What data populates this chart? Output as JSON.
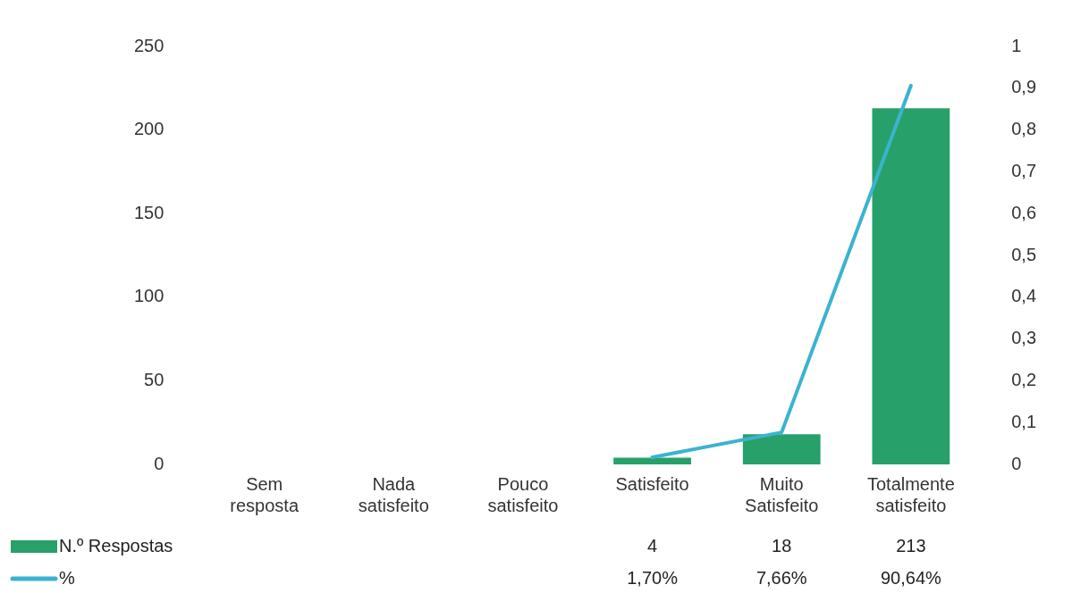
{
  "chart_data": {
    "type": "bar",
    "categories": [
      "Sem resposta",
      "Nada satisfeito",
      "Pouco satisfeito",
      "Satisfeito",
      "Muito Satisfeito",
      "Totalmente satisfeito"
    ],
    "series": [
      {
        "name": "N.º Respostas",
        "color": "#27a06a",
        "values": [
          null,
          null,
          null,
          4,
          18,
          213
        ],
        "value_labels": [
          null,
          null,
          null,
          "4",
          "18",
          "213"
        ]
      },
      {
        "name": "%",
        "type": "line",
        "axis": "y2",
        "color": "#3bb3d0",
        "values": [
          null,
          null,
          null,
          0.017,
          0.0766,
          0.9064
        ],
        "value_labels": [
          null,
          null,
          null,
          "1,70%",
          "7,66%",
          "90,64%"
        ]
      }
    ],
    "legend": "bottom left",
    "ylim": [
      0,
      250
    ],
    "yticks": [
      0,
      50,
      100,
      150,
      200,
      250
    ],
    "y2lim": [
      0,
      1
    ],
    "y2ticks": [
      {
        "value": 0,
        "label": "0"
      },
      {
        "value": 0.1,
        "label": "0,1"
      },
      {
        "value": 0.2,
        "label": "0,2"
      },
      {
        "value": 0.3,
        "label": "0,3"
      },
      {
        "value": 0.4,
        "label": "0,4"
      },
      {
        "value": 0.5,
        "label": "0,5"
      },
      {
        "value": 0.6,
        "label": "0,6"
      },
      {
        "value": 0.7,
        "label": "0,7"
      },
      {
        "value": 0.8,
        "label": "0,8"
      },
      {
        "value": 0.9,
        "label": "0,9"
      },
      {
        "value": 1,
        "label": "1"
      }
    ]
  }
}
